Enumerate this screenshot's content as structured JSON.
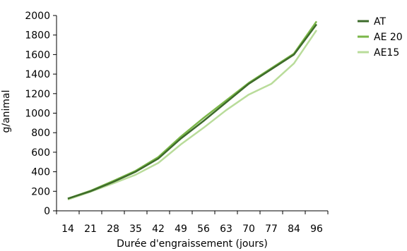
{
  "chart_data": {
    "type": "line",
    "title": "",
    "xlabel": "Durée d'engraissement (jours)",
    "ylabel": "g/animal",
    "categories": [
      "14",
      "21",
      "28",
      "35",
      "42",
      "49",
      "56",
      "63",
      "70",
      "77",
      "84",
      "96"
    ],
    "ylim": [
      0,
      2000
    ],
    "yticks": [
      "0",
      "200",
      "400",
      "600",
      "800",
      "1000",
      "1200",
      "1400",
      "1600",
      "1800",
      "2000"
    ],
    "grid": false,
    "legend_position": "top-right",
    "series": [
      {
        "name": "AT",
        "color": "#3d6b2a",
        "values": [
          125,
          200,
          295,
          400,
          535,
          740,
          920,
          1110,
          1300,
          1450,
          1600,
          1910
        ]
      },
      {
        "name": "AE 20",
        "color": "#7ab648",
        "values": [
          125,
          205,
          305,
          410,
          550,
          760,
          950,
          1130,
          1310,
          1460,
          1610,
          1940
        ]
      },
      {
        "name": "AE15",
        "color": "#b9dc9a",
        "values": [
          115,
          195,
          280,
          370,
          490,
          680,
          850,
          1030,
          1190,
          1300,
          1510,
          1850
        ]
      }
    ]
  }
}
